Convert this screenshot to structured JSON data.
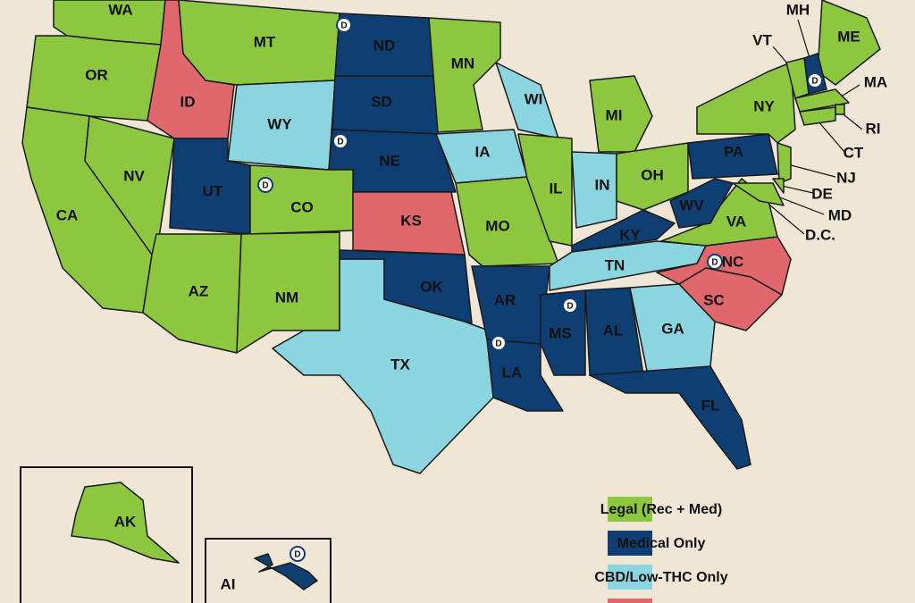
{
  "states": [
    {
      "label": "WA",
      "status": "legal"
    },
    {
      "label": "OR",
      "status": "legal"
    },
    {
      "label": "ID",
      "status": "illegal"
    },
    {
      "label": "MT",
      "status": "legal"
    },
    {
      "label": "WY",
      "status": "cbd"
    },
    {
      "label": "ND",
      "status": "medical",
      "marker": "D"
    },
    {
      "label": "SD",
      "status": "medical"
    },
    {
      "label": "NE",
      "status": "medical",
      "marker": "D"
    },
    {
      "label": "CA",
      "status": "legal"
    },
    {
      "label": "NV",
      "status": "legal"
    },
    {
      "label": "UT",
      "status": "medical"
    },
    {
      "label": "CO",
      "status": "legal",
      "marker": "D"
    },
    {
      "label": "AZ",
      "status": "legal"
    },
    {
      "label": "NM",
      "status": "legal"
    },
    {
      "label": "TX",
      "status": "cbd"
    },
    {
      "label": "OK",
      "status": "medical"
    },
    {
      "label": "KS",
      "status": "illegal"
    },
    {
      "label": "MN",
      "status": "legal"
    },
    {
      "label": "IA",
      "status": "cbd"
    },
    {
      "label": "MO",
      "status": "legal"
    },
    {
      "label": "AR",
      "status": "medical"
    },
    {
      "label": "LA",
      "status": "medical",
      "marker": "D"
    },
    {
      "label": "WI",
      "status": "cbd"
    },
    {
      "label": "IL",
      "status": "legal"
    },
    {
      "label": "MI",
      "status": "legal"
    },
    {
      "label": "IN",
      "status": "cbd"
    },
    {
      "label": "OH",
      "status": "legal"
    },
    {
      "label": "KY",
      "status": "medical"
    },
    {
      "label": "TN",
      "status": "cbd"
    },
    {
      "label": "MS",
      "status": "medical",
      "marker": "D"
    },
    {
      "label": "AL",
      "status": "medical"
    },
    {
      "label": "GA",
      "status": "cbd"
    },
    {
      "label": "FL",
      "status": "medical"
    },
    {
      "label": "NC",
      "status": "illegal",
      "marker": "D"
    },
    {
      "label": "SC",
      "status": "illegal"
    },
    {
      "label": "VA",
      "status": "legal"
    },
    {
      "label": "WV",
      "status": "medical"
    },
    {
      "label": "PA",
      "status": "medical"
    },
    {
      "label": "NY",
      "status": "legal"
    },
    {
      "label": "ME",
      "status": "legal"
    },
    {
      "label": "MH",
      "status": "medical",
      "marker": "D"
    },
    {
      "label": "VT",
      "status": "legal"
    },
    {
      "label": "MA",
      "status": "legal"
    },
    {
      "label": "RI",
      "status": "legal"
    },
    {
      "label": "CT",
      "status": "legal"
    },
    {
      "label": "NJ",
      "status": "legal"
    },
    {
      "label": "DE",
      "status": "legal"
    },
    {
      "label": "MD",
      "status": "legal"
    },
    {
      "label": "D.C."
    },
    {
      "label": "AK",
      "status": "legal"
    },
    {
      "label": "AI",
      "status": "medical",
      "marker": "D"
    }
  ],
  "legend": [
    {
      "status": "legal",
      "label": "Legal (Rec + Med)",
      "color": "#8dc63f"
    },
    {
      "status": "medical",
      "label": "Medical Only",
      "color": "#0e3e72"
    },
    {
      "status": "cbd",
      "label": "CBD/Low-THC Only",
      "color": "#8bd5e0"
    },
    {
      "status": "illegal",
      "color": "#e0676b"
    }
  ]
}
